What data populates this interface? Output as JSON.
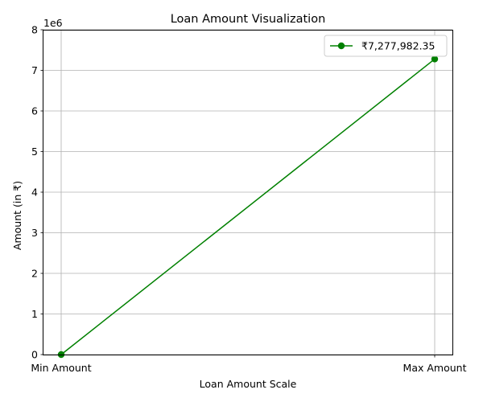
{
  "chart_data": {
    "type": "line",
    "title": "Loan Amount Visualization",
    "xlabel": "Loan Amount Scale",
    "ylabel": "Amount (in ₹)",
    "categories": [
      "Min Amount",
      "Max Amount"
    ],
    "series": [
      {
        "name": "₹7,277,982.35",
        "values": [
          0,
          7277982.35
        ],
        "color": "#008000",
        "marker": "circle"
      }
    ],
    "ylim": [
      0,
      8000000
    ],
    "yticks": [
      0,
      1,
      2,
      3,
      4,
      5,
      6,
      7,
      8
    ],
    "y_offset_label": "1e6",
    "grid": true,
    "legend_position": "top-right"
  }
}
